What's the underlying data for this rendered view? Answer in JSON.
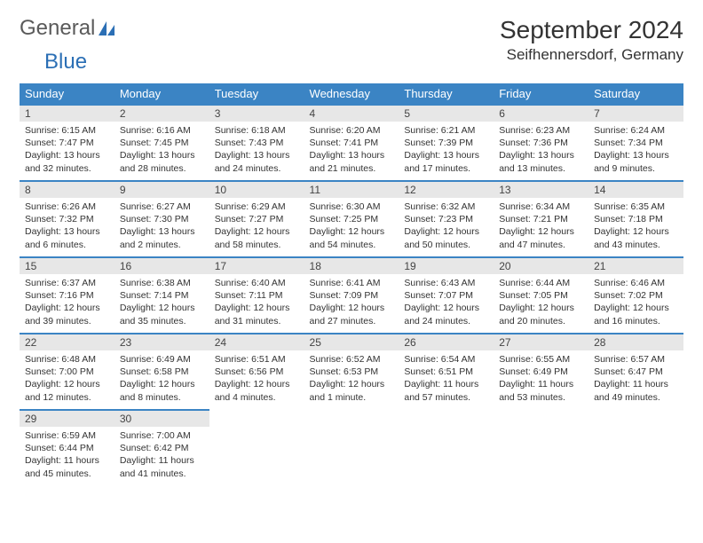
{
  "logo": {
    "part1": "General",
    "part2": "Blue"
  },
  "title": "September 2024",
  "location": "Seifhennersdorf, Germany",
  "weekdays": [
    "Sunday",
    "Monday",
    "Tuesday",
    "Wednesday",
    "Thursday",
    "Friday",
    "Saturday"
  ],
  "colors": {
    "header_bg": "#3b84c4",
    "header_text": "#ffffff",
    "daynum_bg": "#e7e7e7",
    "row_border": "#3b84c4",
    "body_text": "#333333",
    "logo_gray": "#5a5a5a",
    "logo_blue": "#2b6fb5"
  },
  "fonts": {
    "title_size_pt": 21,
    "location_size_pt": 13,
    "weekday_size_pt": 10,
    "daynum_size_pt": 9,
    "body_size_pt": 8
  },
  "weeks": [
    [
      {
        "n": "1",
        "sr": "Sunrise: 6:15 AM",
        "ss": "Sunset: 7:47 PM",
        "d1": "Daylight: 13 hours",
        "d2": "and 32 minutes."
      },
      {
        "n": "2",
        "sr": "Sunrise: 6:16 AM",
        "ss": "Sunset: 7:45 PM",
        "d1": "Daylight: 13 hours",
        "d2": "and 28 minutes."
      },
      {
        "n": "3",
        "sr": "Sunrise: 6:18 AM",
        "ss": "Sunset: 7:43 PM",
        "d1": "Daylight: 13 hours",
        "d2": "and 24 minutes."
      },
      {
        "n": "4",
        "sr": "Sunrise: 6:20 AM",
        "ss": "Sunset: 7:41 PM",
        "d1": "Daylight: 13 hours",
        "d2": "and 21 minutes."
      },
      {
        "n": "5",
        "sr": "Sunrise: 6:21 AM",
        "ss": "Sunset: 7:39 PM",
        "d1": "Daylight: 13 hours",
        "d2": "and 17 minutes."
      },
      {
        "n": "6",
        "sr": "Sunrise: 6:23 AM",
        "ss": "Sunset: 7:36 PM",
        "d1": "Daylight: 13 hours",
        "d2": "and 13 minutes."
      },
      {
        "n": "7",
        "sr": "Sunrise: 6:24 AM",
        "ss": "Sunset: 7:34 PM",
        "d1": "Daylight: 13 hours",
        "d2": "and 9 minutes."
      }
    ],
    [
      {
        "n": "8",
        "sr": "Sunrise: 6:26 AM",
        "ss": "Sunset: 7:32 PM",
        "d1": "Daylight: 13 hours",
        "d2": "and 6 minutes."
      },
      {
        "n": "9",
        "sr": "Sunrise: 6:27 AM",
        "ss": "Sunset: 7:30 PM",
        "d1": "Daylight: 13 hours",
        "d2": "and 2 minutes."
      },
      {
        "n": "10",
        "sr": "Sunrise: 6:29 AM",
        "ss": "Sunset: 7:27 PM",
        "d1": "Daylight: 12 hours",
        "d2": "and 58 minutes."
      },
      {
        "n": "11",
        "sr": "Sunrise: 6:30 AM",
        "ss": "Sunset: 7:25 PM",
        "d1": "Daylight: 12 hours",
        "d2": "and 54 minutes."
      },
      {
        "n": "12",
        "sr": "Sunrise: 6:32 AM",
        "ss": "Sunset: 7:23 PM",
        "d1": "Daylight: 12 hours",
        "d2": "and 50 minutes."
      },
      {
        "n": "13",
        "sr": "Sunrise: 6:34 AM",
        "ss": "Sunset: 7:21 PM",
        "d1": "Daylight: 12 hours",
        "d2": "and 47 minutes."
      },
      {
        "n": "14",
        "sr": "Sunrise: 6:35 AM",
        "ss": "Sunset: 7:18 PM",
        "d1": "Daylight: 12 hours",
        "d2": "and 43 minutes."
      }
    ],
    [
      {
        "n": "15",
        "sr": "Sunrise: 6:37 AM",
        "ss": "Sunset: 7:16 PM",
        "d1": "Daylight: 12 hours",
        "d2": "and 39 minutes."
      },
      {
        "n": "16",
        "sr": "Sunrise: 6:38 AM",
        "ss": "Sunset: 7:14 PM",
        "d1": "Daylight: 12 hours",
        "d2": "and 35 minutes."
      },
      {
        "n": "17",
        "sr": "Sunrise: 6:40 AM",
        "ss": "Sunset: 7:11 PM",
        "d1": "Daylight: 12 hours",
        "d2": "and 31 minutes."
      },
      {
        "n": "18",
        "sr": "Sunrise: 6:41 AM",
        "ss": "Sunset: 7:09 PM",
        "d1": "Daylight: 12 hours",
        "d2": "and 27 minutes."
      },
      {
        "n": "19",
        "sr": "Sunrise: 6:43 AM",
        "ss": "Sunset: 7:07 PM",
        "d1": "Daylight: 12 hours",
        "d2": "and 24 minutes."
      },
      {
        "n": "20",
        "sr": "Sunrise: 6:44 AM",
        "ss": "Sunset: 7:05 PM",
        "d1": "Daylight: 12 hours",
        "d2": "and 20 minutes."
      },
      {
        "n": "21",
        "sr": "Sunrise: 6:46 AM",
        "ss": "Sunset: 7:02 PM",
        "d1": "Daylight: 12 hours",
        "d2": "and 16 minutes."
      }
    ],
    [
      {
        "n": "22",
        "sr": "Sunrise: 6:48 AM",
        "ss": "Sunset: 7:00 PM",
        "d1": "Daylight: 12 hours",
        "d2": "and 12 minutes."
      },
      {
        "n": "23",
        "sr": "Sunrise: 6:49 AM",
        "ss": "Sunset: 6:58 PM",
        "d1": "Daylight: 12 hours",
        "d2": "and 8 minutes."
      },
      {
        "n": "24",
        "sr": "Sunrise: 6:51 AM",
        "ss": "Sunset: 6:56 PM",
        "d1": "Daylight: 12 hours",
        "d2": "and 4 minutes."
      },
      {
        "n": "25",
        "sr": "Sunrise: 6:52 AM",
        "ss": "Sunset: 6:53 PM",
        "d1": "Daylight: 12 hours",
        "d2": "and 1 minute."
      },
      {
        "n": "26",
        "sr": "Sunrise: 6:54 AM",
        "ss": "Sunset: 6:51 PM",
        "d1": "Daylight: 11 hours",
        "d2": "and 57 minutes."
      },
      {
        "n": "27",
        "sr": "Sunrise: 6:55 AM",
        "ss": "Sunset: 6:49 PM",
        "d1": "Daylight: 11 hours",
        "d2": "and 53 minutes."
      },
      {
        "n": "28",
        "sr": "Sunrise: 6:57 AM",
        "ss": "Sunset: 6:47 PM",
        "d1": "Daylight: 11 hours",
        "d2": "and 49 minutes."
      }
    ],
    [
      {
        "n": "29",
        "sr": "Sunrise: 6:59 AM",
        "ss": "Sunset: 6:44 PM",
        "d1": "Daylight: 11 hours",
        "d2": "and 45 minutes."
      },
      {
        "n": "30",
        "sr": "Sunrise: 7:00 AM",
        "ss": "Sunset: 6:42 PM",
        "d1": "Daylight: 11 hours",
        "d2": "and 41 minutes."
      },
      null,
      null,
      null,
      null,
      null
    ]
  ]
}
